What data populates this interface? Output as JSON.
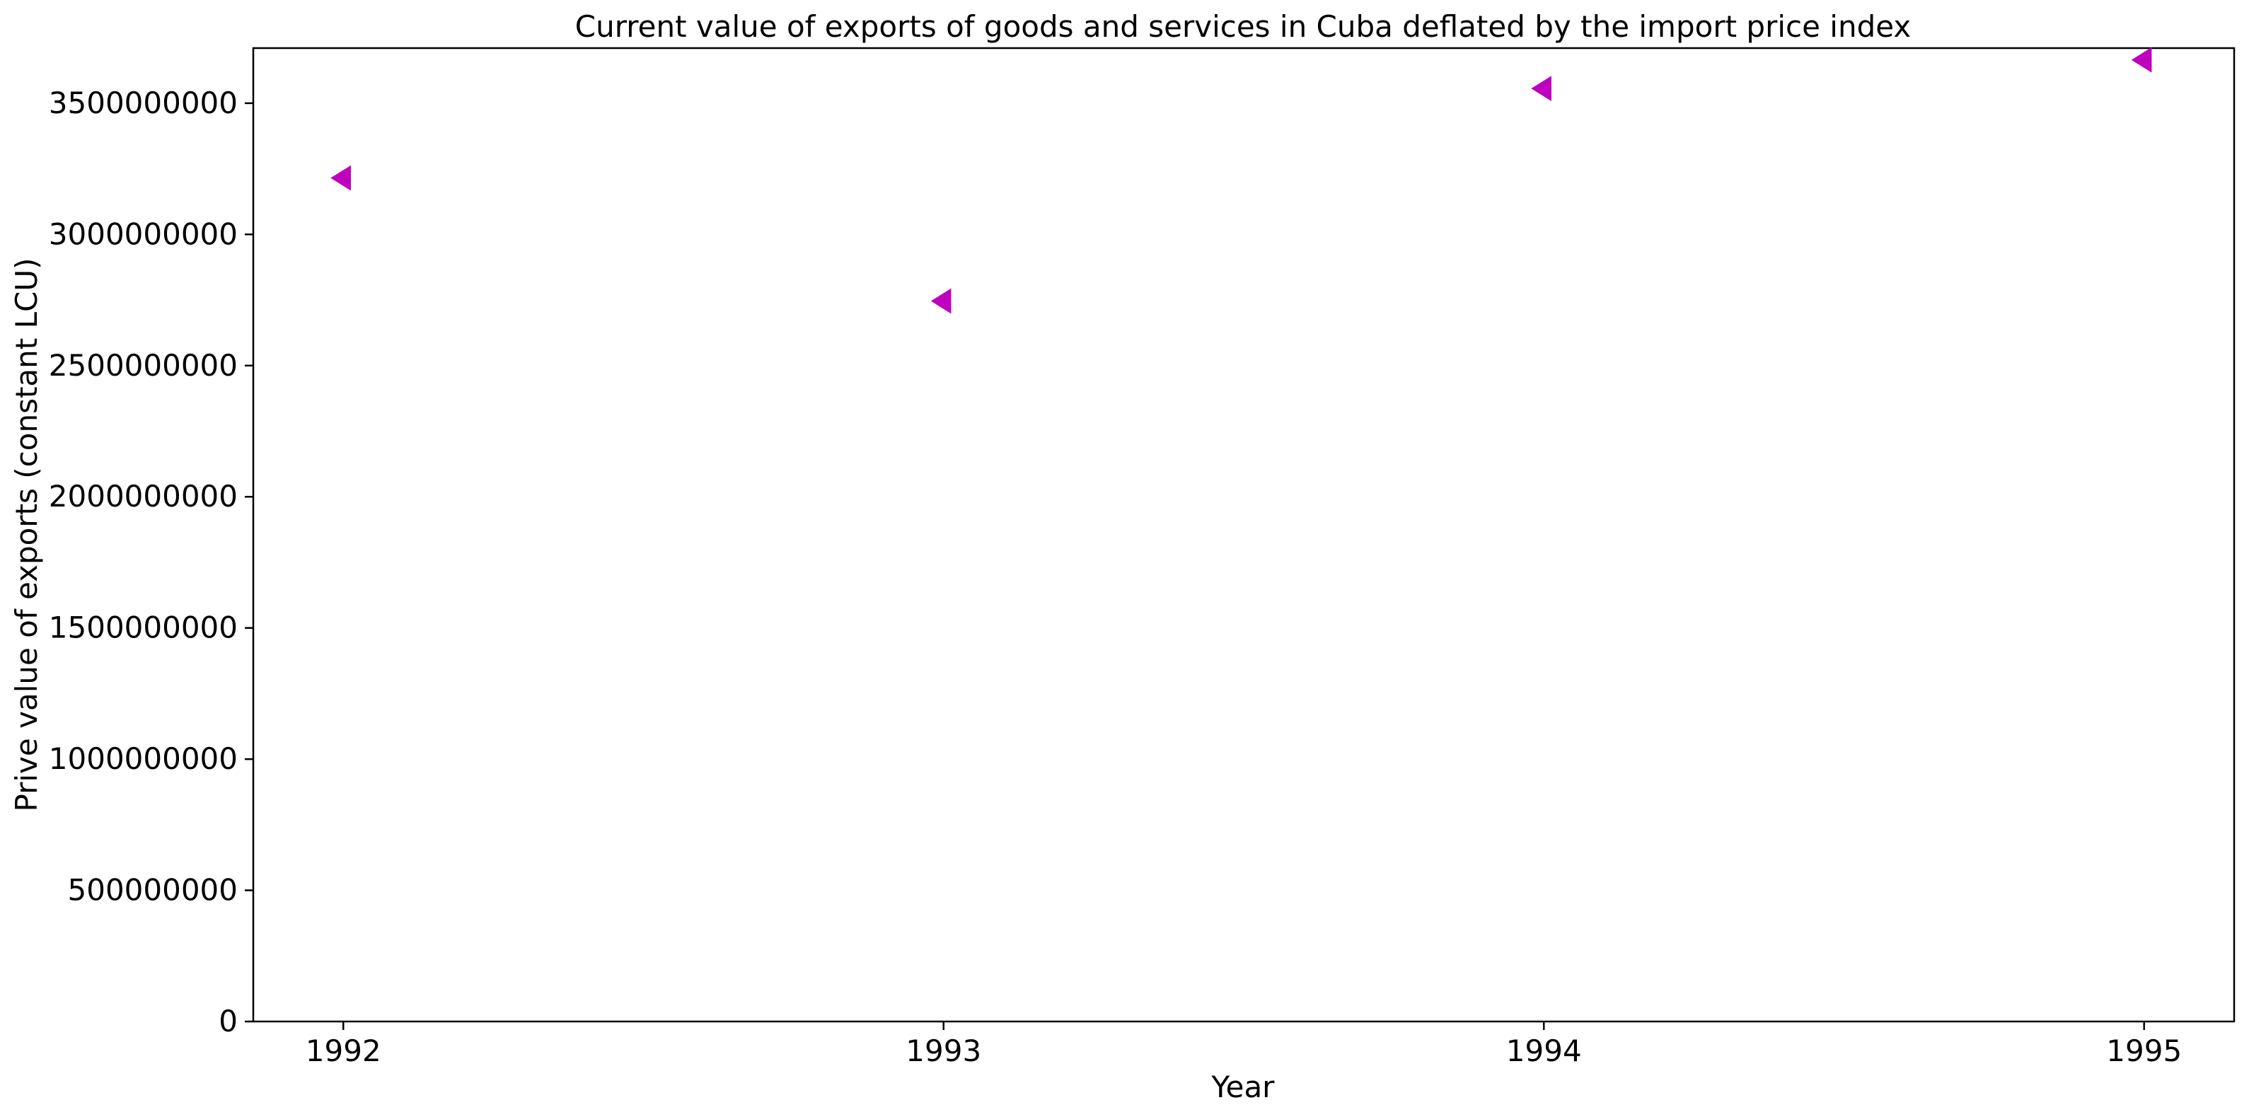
{
  "chart_data": {
    "type": "scatter",
    "title": "Current value of exports of goods and services in Cuba deflated by the import price index",
    "xlabel": "Year",
    "ylabel": "Prive value of exports (constant LCU)",
    "x": [
      1992,
      1993,
      1994,
      1995
    ],
    "series": [
      {
        "values": [
          3215000000,
          2746000000,
          3556000000,
          3665000000
        ],
        "color": "#bf00bf",
        "marker": "triangle-left"
      }
    ],
    "x_ticks": [
      "1992",
      "1993",
      "1994",
      "1995"
    ],
    "y_ticks": [
      "0",
      "500000000",
      "1000000000",
      "1500000000",
      "2000000000",
      "2500000000",
      "3000000000",
      "3500000000"
    ],
    "xlim": [
      1991.85,
      1995.15
    ],
    "ylim": [
      0,
      3710000000
    ],
    "grid": false,
    "legend": "none"
  }
}
